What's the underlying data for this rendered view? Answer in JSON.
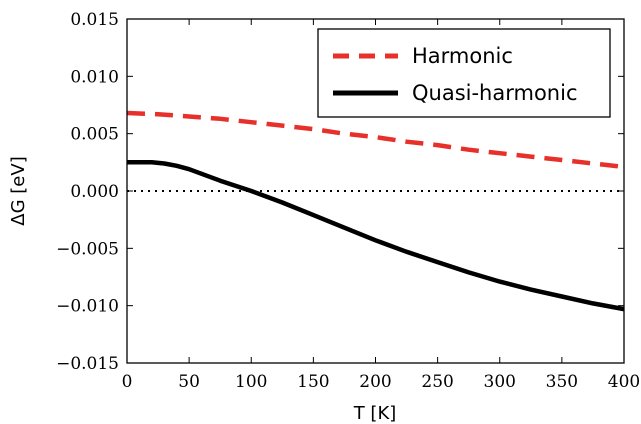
{
  "chart_data": {
    "type": "line",
    "title": "",
    "xlabel": "T [K]",
    "ylabel": "ΔG [eV]",
    "xlim": [
      0,
      400
    ],
    "ylim": [
      -0.015,
      0.015
    ],
    "xticks": [
      0,
      50,
      100,
      150,
      200,
      250,
      300,
      350,
      400
    ],
    "xtick_labels": [
      "0",
      "50",
      "100",
      "150",
      "200",
      "250",
      "300",
      "350",
      "400"
    ],
    "yticks": [
      -0.015,
      -0.01,
      -0.005,
      0.0,
      0.005,
      0.01,
      0.015
    ],
    "ytick_labels": [
      "−0.015",
      "−0.010",
      "−0.005",
      "0.000",
      "0.005",
      "0.010",
      "0.015"
    ],
    "grid": false,
    "legend_position": "top-right",
    "reference_line": {
      "y": 0.0,
      "style": "dotted",
      "color": "#000000"
    },
    "series": [
      {
        "name": "Harmonic",
        "color": "#e8302a",
        "style": "dashed",
        "x": [
          0,
          25,
          50,
          75,
          100,
          125,
          150,
          175,
          200,
          225,
          250,
          275,
          300,
          325,
          350,
          375,
          400
        ],
        "y": [
          0.0068,
          0.0067,
          0.0065,
          0.0063,
          0.006,
          0.0057,
          0.0054,
          0.005,
          0.0047,
          0.0043,
          0.004,
          0.0036,
          0.0033,
          0.003,
          0.0027,
          0.0024,
          0.0021
        ]
      },
      {
        "name": "Quasi-harmonic",
        "color": "#000000",
        "style": "solid",
        "x": [
          0,
          10,
          20,
          30,
          40,
          50,
          60,
          75,
          100,
          125,
          150,
          175,
          200,
          225,
          250,
          275,
          300,
          325,
          350,
          375,
          400
        ],
        "y": [
          0.0025,
          0.0025,
          0.0025,
          0.0024,
          0.0022,
          0.0019,
          0.0015,
          0.0009,
          0.0,
          -0.001,
          -0.0021,
          -0.0032,
          -0.0043,
          -0.0053,
          -0.0062,
          -0.0071,
          -0.0079,
          -0.0086,
          -0.0092,
          -0.0098,
          -0.0103
        ]
      }
    ]
  }
}
